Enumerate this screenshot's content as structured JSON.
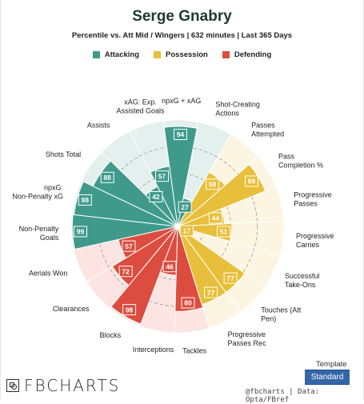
{
  "header": {
    "title": "Serge Gnabry",
    "subtitle": "Percentile vs. Att Mid / Wingers | 632 minutes | Last 365 Days"
  },
  "legend": [
    {
      "label": "Attacking",
      "color": "#3f9a8c"
    },
    {
      "label": "Possession",
      "color": "#e7bf3a"
    },
    {
      "label": "Defending",
      "color": "#dc4d3f"
    }
  ],
  "chart_data": {
    "type": "radar",
    "scale": [
      0,
      100
    ],
    "metrics": [
      {
        "label": "npxG + xAG",
        "value": 94,
        "category": "Attacking"
      },
      {
        "label": "Shot-Creating Actions",
        "value": 27,
        "category": "Attacking"
      },
      {
        "label": "Passes Attempted",
        "value": 59,
        "category": "Possession"
      },
      {
        "label": "Pass Completion %",
        "value": 89,
        "category": "Possession"
      },
      {
        "label": "Progressive Passes",
        "value": 44,
        "category": "Possession"
      },
      {
        "label": "Progressive Carries",
        "value": 51,
        "category": "Possession"
      },
      {
        "label": "Successful Take-Ons",
        "value": 17,
        "category": "Possession"
      },
      {
        "label": "Touches (Att Pen)",
        "value": 77,
        "category": "Possession"
      },
      {
        "label": "Progressive Passes Rec",
        "value": 77,
        "category": "Possession"
      },
      {
        "label": "Tackles",
        "value": 80,
        "category": "Defending"
      },
      {
        "label": "Interceptions",
        "value": 46,
        "category": "Defending"
      },
      {
        "label": "Blocks",
        "value": 98,
        "category": "Defending"
      },
      {
        "label": "Clearances",
        "value": 72,
        "category": "Defending"
      },
      {
        "label": "Aerials Won",
        "value": 57,
        "category": "Defending"
      },
      {
        "label": "Non-Penalty Goals",
        "value": 99,
        "category": "Attacking"
      },
      {
        "label": "npxG: Non-Penalty xG",
        "value": 98,
        "category": "Attacking"
      },
      {
        "label": "Shots Total",
        "value": 88,
        "category": "Attacking"
      },
      {
        "label": "Assists",
        "value": 42,
        "category": "Attacking"
      },
      {
        "label": "xAG: Exp. Assisted Goals",
        "value": 57,
        "category": "Attacking"
      }
    ]
  },
  "footer": {
    "logo_text": "FBCHARTS",
    "template_label": "Template",
    "template_button": "Standard",
    "credit": "@fbcharts | Data: Opta/FBref"
  }
}
